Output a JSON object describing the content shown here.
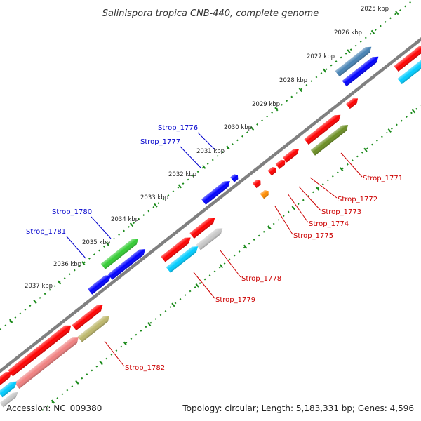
{
  "title": "Salinispora tropica CNB-440, complete genome",
  "footer": {
    "accession": "Accession: NC_009380",
    "summary": "Topology: circular; Length: 5,183,331 bp; Genes: 4,596"
  },
  "ticks": [
    "2025 kbp",
    "2026 kbp",
    "2027 kbp",
    "2028 kbp",
    "2029 kbp",
    "2030 kbp",
    "2031 kbp",
    "2032 kbp",
    "2033 kbp",
    "2034 kbp",
    "2035 kbp",
    "2036 kbp",
    "2037 kbp"
  ],
  "gene_labels": {
    "forward": [
      "Strop_1776",
      "Strop_1777",
      "Strop_1780",
      "Strop_1781"
    ],
    "reverse": [
      "Strop_1771",
      "Strop_1772",
      "Strop_1773",
      "Strop_1774",
      "Strop_1775",
      "Strop_1778",
      "Strop_1779",
      "Strop_1782"
    ]
  },
  "colors": {
    "forward_label": "#0000cc",
    "reverse_label": "#cc0000",
    "backbone": "#808080",
    "tick_dots": "#1a8a1a",
    "gene_red": "#ff0000",
    "gene_blue": "#0000ff",
    "gene_green": "#33cc33",
    "gene_olive": "#6b8e23",
    "gene_khaki": "#bdb76b",
    "gene_cyan": "#00ccff",
    "gene_grey": "#c8c8c8",
    "gene_pink": "#f08080",
    "gene_orange": "#ff8c00",
    "gene_steelblue": "#4682b4"
  }
}
